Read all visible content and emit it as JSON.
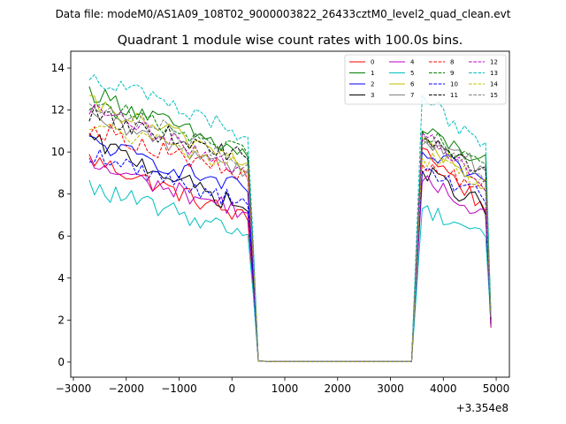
{
  "figure": {
    "header": "Data file: modeM0/AS1A09_108T02_9000003822_26433cztM0_level2_quad_clean.evt"
  },
  "chart_data": {
    "type": "line",
    "title": "Quadrant 1 module wise count rates with 100.0s bins.",
    "xlabel": "",
    "ylabel": "",
    "x_offset_label": "+3.354e8",
    "xlim": [
      -3050,
      5250
    ],
    "ylim": [
      -0.72,
      14.8
    ],
    "xticks": [
      -3000,
      -2000,
      -1000,
      0,
      1000,
      2000,
      3000,
      4000,
      5000
    ],
    "xtick_labels": [
      "−3000",
      "−2000",
      "−1000",
      "0",
      "1000",
      "2000",
      "3000",
      "4000",
      "5000"
    ],
    "yticks": [
      0,
      2,
      4,
      6,
      8,
      10,
      12,
      14
    ],
    "ytick_labels": [
      "0",
      "2",
      "4",
      "6",
      "8",
      "10",
      "12",
      "14"
    ],
    "grid": false,
    "legend_position": "top-right",
    "legend_columns": 4,
    "x_segments": {
      "seg1": {
        "start": -2700,
        "step": 100,
        "count": 33
      },
      "gap": [
        700,
        3400
      ],
      "seg2": {
        "start": 3500,
        "step": 100,
        "count": 15
      }
    },
    "series": [
      {
        "name": "0",
        "color": "#ff0000",
        "dash": "solid",
        "seg1_start": 9.7,
        "seg1_end": 6.6,
        "seg2_peak": 10.2,
        "seg2_end": 7.3
      },
      {
        "name": "1",
        "color": "#008000",
        "dash": "solid",
        "seg1_start": 12.9,
        "seg1_end": 9.6,
        "seg2_peak": 11.0,
        "seg2_end": 9.5
      },
      {
        "name": "2",
        "color": "#0000ff",
        "dash": "solid",
        "seg1_start": 10.5,
        "seg1_end": 8.0,
        "seg2_peak": 10.0,
        "seg2_end": 8.6
      },
      {
        "name": "3",
        "color": "#000000",
        "dash": "solid",
        "seg1_start": 10.6,
        "seg1_end": 7.0,
        "seg2_peak": 9.1,
        "seg2_end": 7.4
      },
      {
        "name": "4",
        "color": "#bf00bf",
        "dash": "solid",
        "seg1_start": 9.4,
        "seg1_end": 7.0,
        "seg2_peak": 8.6,
        "seg2_end": 7.1
      },
      {
        "name": "5",
        "color": "#00bfbf",
        "dash": "solid",
        "seg1_start": 8.3,
        "seg1_end": 6.0,
        "seg2_peak": 7.3,
        "seg2_end": 6.2
      },
      {
        "name": "6",
        "color": "#bfbf00",
        "dash": "solid",
        "seg1_start": 12.3,
        "seg1_end": 9.4,
        "seg2_peak": 10.7,
        "seg2_end": 8.0
      },
      {
        "name": "7",
        "color": "#808080",
        "dash": "solid",
        "seg1_start": 11.6,
        "seg1_end": 9.0,
        "seg2_peak": 10.6,
        "seg2_end": 9.2
      },
      {
        "name": "8",
        "color": "#ff0000",
        "dash": "dashed",
        "seg1_start": 11.2,
        "seg1_end": 8.6,
        "seg2_peak": 9.4,
        "seg2_end": 8.3
      },
      {
        "name": "9",
        "color": "#008000",
        "dash": "dashed",
        "seg1_start": 12.4,
        "seg1_end": 9.8,
        "seg2_peak": 11.0,
        "seg2_end": 9.4
      },
      {
        "name": "10",
        "color": "#0000ff",
        "dash": "dashed",
        "seg1_start": 9.9,
        "seg1_end": 7.4,
        "seg2_peak": 9.0,
        "seg2_end": 7.9
      },
      {
        "name": "11",
        "color": "#000000",
        "dash": "dashed",
        "seg1_start": 11.8,
        "seg1_end": 9.6,
        "seg2_peak": 10.6,
        "seg2_end": 9.1
      },
      {
        "name": "12",
        "color": "#bf00bf",
        "dash": "dashed",
        "seg1_start": 12.1,
        "seg1_end": 8.9,
        "seg2_peak": 10.9,
        "seg2_end": 8.3
      },
      {
        "name": "13",
        "color": "#00bfbf",
        "dash": "dashed",
        "seg1_start": 13.7,
        "seg1_end": 10.6,
        "seg2_peak": 12.7,
        "seg2_end": 10.1
      },
      {
        "name": "14",
        "color": "#bfbf00",
        "dash": "dashed",
        "seg1_start": 11.3,
        "seg1_end": 9.1,
        "seg2_peak": 9.7,
        "seg2_end": 8.7
      },
      {
        "name": "15",
        "color": "#808080",
        "dash": "dashed",
        "seg1_start": 12.5,
        "seg1_end": 9.3,
        "seg2_peak": 10.3,
        "seg2_end": 8.9
      }
    ]
  }
}
